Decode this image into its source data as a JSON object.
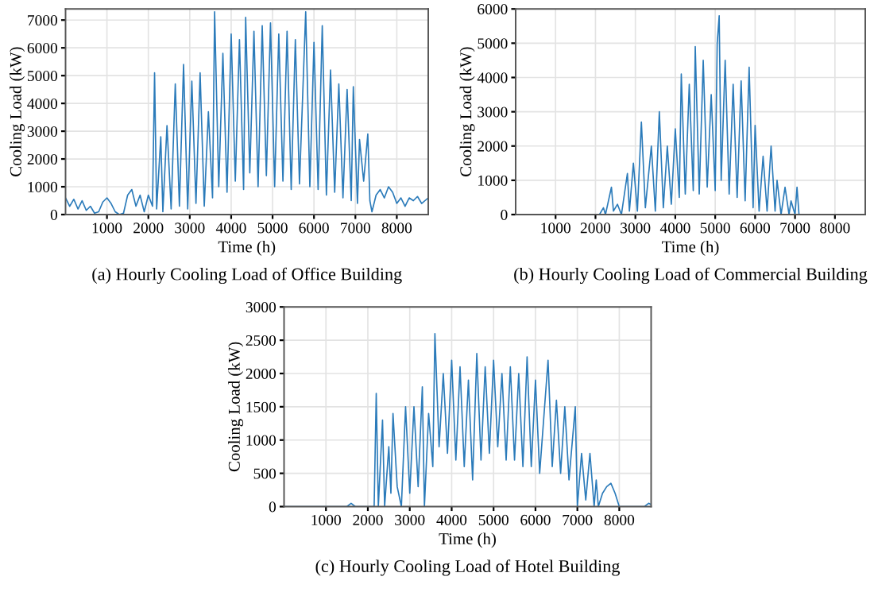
{
  "chart_data": [
    {
      "type": "line",
      "title": "(a) Hourly Cooling Load of Office Building",
      "xlabel": "Time (h)",
      "ylabel": "Cooling Load (kW)",
      "color": "#2b7bba",
      "grid": true,
      "xlim": [
        0,
        8760
      ],
      "xticks": [
        1000,
        2000,
        3000,
        4000,
        5000,
        6000,
        7000,
        8000
      ],
      "ylim": [
        0,
        7400
      ],
      "yticks": [
        0,
        1000,
        2000,
        3000,
        4000,
        5000,
        6000,
        7000
      ],
      "x": [
        0,
        100,
        200,
        300,
        400,
        500,
        600,
        700,
        800,
        900,
        1000,
        1100,
        1200,
        1300,
        1400,
        1500,
        1600,
        1700,
        1800,
        1900,
        2000,
        2100,
        2150,
        2200,
        2300,
        2350,
        2450,
        2550,
        2650,
        2750,
        2850,
        2950,
        3050,
        3150,
        3250,
        3350,
        3450,
        3550,
        3600,
        3700,
        3800,
        3900,
        4000,
        4100,
        4200,
        4300,
        4350,
        4450,
        4550,
        4650,
        4750,
        4850,
        4950,
        5050,
        5150,
        5250,
        5350,
        5450,
        5550,
        5650,
        5800,
        5900,
        6000,
        6100,
        6200,
        6300,
        6400,
        6500,
        6600,
        6700,
        6800,
        6900,
        6950,
        7050,
        7100,
        7200,
        7300,
        7350,
        7400,
        7500,
        7600,
        7700,
        7800,
        7900,
        8000,
        8100,
        8200,
        8300,
        8400,
        8500,
        8600,
        8760
      ],
      "values": [
        600,
        300,
        550,
        200,
        500,
        150,
        300,
        50,
        100,
        450,
        600,
        400,
        100,
        0,
        50,
        700,
        900,
        300,
        700,
        100,
        700,
        300,
        5100,
        200,
        2800,
        100,
        3200,
        200,
        4700,
        300,
        5400,
        200,
        4800,
        400,
        5100,
        300,
        3700,
        600,
        7300,
        1000,
        5800,
        800,
        6500,
        1200,
        6300,
        900,
        7100,
        1500,
        6600,
        1000,
        6800,
        1400,
        6900,
        1000,
        6500,
        1200,
        6600,
        900,
        6300,
        1100,
        7300,
        1000,
        6200,
        900,
        6800,
        700,
        5200,
        800,
        4700,
        600,
        4500,
        500,
        4600,
        400,
        2700,
        1200,
        2900,
        500,
        100,
        700,
        900,
        600,
        1000,
        800,
        400,
        600,
        300,
        600,
        500,
        650,
        400,
        600
      ]
    },
    {
      "type": "line",
      "title": "(b) Hourly Cooling Load of Commercial Building",
      "xlabel": "Time (h)",
      "ylabel": "Cooling Load (kW)",
      "color": "#2b7bba",
      "grid": true,
      "xlim": [
        0,
        8760
      ],
      "xticks": [
        1000,
        2000,
        3000,
        4000,
        5000,
        6000,
        7000,
        8000
      ],
      "ylim": [
        0,
        6000
      ],
      "yticks": [
        0,
        1000,
        2000,
        3000,
        4000,
        5000,
        6000
      ],
      "x": [
        0,
        2100,
        2200,
        2250,
        2400,
        2450,
        2550,
        2650,
        2800,
        2850,
        2950,
        3050,
        3150,
        3250,
        3400,
        3500,
        3600,
        3700,
        3800,
        3900,
        4000,
        4100,
        4150,
        4250,
        4350,
        4450,
        4500,
        4600,
        4700,
        4800,
        4900,
        5000,
        5050,
        5100,
        5150,
        5250,
        5350,
        5450,
        5550,
        5650,
        5750,
        5850,
        5950,
        6000,
        6100,
        6200,
        6300,
        6400,
        6500,
        6550,
        6650,
        6750,
        6850,
        6900,
        7000,
        7050,
        7100,
        8760
      ],
      "values": [
        0,
        0,
        200,
        0,
        800,
        100,
        300,
        0,
        1200,
        100,
        1500,
        100,
        2700,
        200,
        2000,
        100,
        3000,
        200,
        2000,
        300,
        2500,
        500,
        4100,
        600,
        3800,
        700,
        4900,
        600,
        4500,
        800,
        3500,
        700,
        5000,
        5800,
        1000,
        4500,
        600,
        3800,
        500,
        3900,
        400,
        4300,
        200,
        2600,
        100,
        1700,
        100,
        2000,
        100,
        1000,
        0,
        800,
        0,
        400,
        0,
        800,
        0,
        0
      ]
    },
    {
      "type": "line",
      "title": "(c) Hourly Cooling Load of Hotel Building",
      "xlabel": "Time (h)",
      "ylabel": "Cooling Load (kW)",
      "color": "#2b7bba",
      "grid": true,
      "xlim": [
        0,
        8760
      ],
      "xticks": [
        1000,
        2000,
        3000,
        4000,
        5000,
        6000,
        7000,
        8000
      ],
      "ylim": [
        0,
        3000
      ],
      "yticks": [
        0,
        500,
        1000,
        1500,
        2000,
        2500,
        3000
      ],
      "x": [
        0,
        1500,
        1600,
        1700,
        2150,
        2200,
        2250,
        2350,
        2400,
        2500,
        2550,
        2600,
        2700,
        2800,
        2900,
        3000,
        3100,
        3200,
        3300,
        3350,
        3450,
        3550,
        3600,
        3700,
        3800,
        3900,
        4000,
        4100,
        4200,
        4300,
        4400,
        4500,
        4600,
        4700,
        4800,
        4900,
        5000,
        5100,
        5200,
        5300,
        5400,
        5500,
        5600,
        5700,
        5800,
        5900,
        6000,
        6100,
        6300,
        6400,
        6500,
        6600,
        6700,
        6800,
        6950,
        7000,
        7100,
        7200,
        7300,
        7400,
        7450,
        7500,
        7600,
        7700,
        7800,
        7900,
        8000,
        8600,
        8700,
        8760
      ],
      "values": [
        0,
        0,
        50,
        0,
        0,
        1700,
        0,
        1300,
        0,
        900,
        200,
        1400,
        300,
        0,
        1500,
        200,
        1500,
        300,
        1800,
        0,
        1400,
        600,
        2600,
        900,
        2000,
        800,
        2200,
        700,
        2100,
        600,
        1900,
        400,
        2300,
        700,
        2100,
        800,
        2200,
        900,
        2000,
        700,
        2100,
        700,
        2000,
        600,
        2250,
        600,
        1900,
        500,
        2200,
        600,
        1600,
        500,
        1500,
        400,
        1500,
        0,
        800,
        100,
        800,
        0,
        400,
        0,
        200,
        300,
        350,
        200,
        0,
        0,
        50,
        30
      ]
    }
  ]
}
